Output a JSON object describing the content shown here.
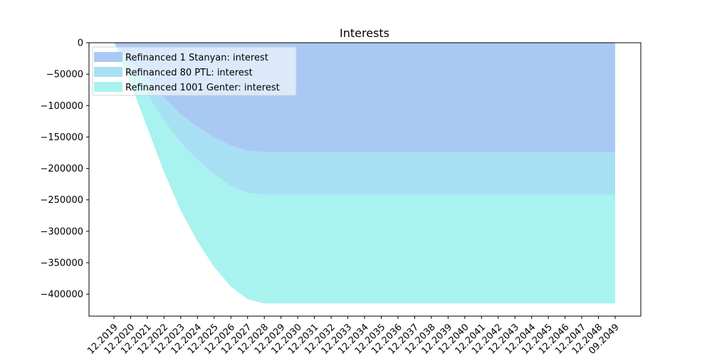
{
  "chart_data": {
    "type": "area",
    "stacked": true,
    "title": "Interests",
    "xlabel": "",
    "ylabel": "",
    "categories": [
      "12.2019",
      "12.2020",
      "12.2021",
      "12.2022",
      "12.2023",
      "12.2024",
      "12.2025",
      "12.2026",
      "12.2027",
      "12.2028",
      "12.2029",
      "12.2030",
      "12.2031",
      "12.2032",
      "12.2033",
      "12.2034",
      "12.2035",
      "12.2036",
      "12.2037",
      "12.2038",
      "12.2039",
      "12.2040",
      "12.2041",
      "12.2042",
      "12.2043",
      "12.2044",
      "12.2045",
      "12.2046",
      "12.2047",
      "12.2048",
      "09.2049"
    ],
    "ylim": [
      -435000,
      0
    ],
    "yticks": [
      0,
      -50000,
      -100000,
      -150000,
      -200000,
      -250000,
      -300000,
      -350000,
      -400000
    ],
    "grid": false,
    "legend_position": "top-left",
    "series": [
      {
        "name": "Refinanced 1 Stanyan: interest",
        "color": "#a9c9f4",
        "values": [
          0,
          -28000,
          -58000,
          -88000,
          -114000,
          -134000,
          -151000,
          -164000,
          -172000,
          -174000,
          -174000,
          -174000,
          -174000,
          -174000,
          -174000,
          -174000,
          -174000,
          -174000,
          -174000,
          -174000,
          -174000,
          -174000,
          -174000,
          -174000,
          -174000,
          -174000,
          -174000,
          -174000,
          -174000,
          -174000,
          -174000
        ]
      },
      {
        "name": "Refinanced 80 PTL: interest",
        "color": "#a7e0f3",
        "values": [
          0,
          -12000,
          -24000,
          -36000,
          -45000,
          -52000,
          -59000,
          -64000,
          -67000,
          -68000,
          -68000,
          -68000,
          -68000,
          -68000,
          -68000,
          -68000,
          -68000,
          -68000,
          -68000,
          -68000,
          -68000,
          -68000,
          -68000,
          -68000,
          -68000,
          -68000,
          -68000,
          -68000,
          -68000,
          -68000,
          -68000
        ]
      },
      {
        "name": "Refinanced 1001 Genter: interest",
        "color": "#a8f2ef",
        "values": [
          0,
          -25000,
          -53000,
          -82000,
          -108000,
          -130000,
          -147000,
          -160000,
          -169000,
          -173000,
          -173000,
          -173000,
          -173000,
          -173000,
          -173000,
          -173000,
          -173000,
          -173000,
          -173000,
          -173000,
          -173000,
          -173000,
          -173000,
          -173000,
          -173000,
          -173000,
          -173000,
          -173000,
          -173000,
          -173000,
          -173000
        ]
      }
    ]
  }
}
